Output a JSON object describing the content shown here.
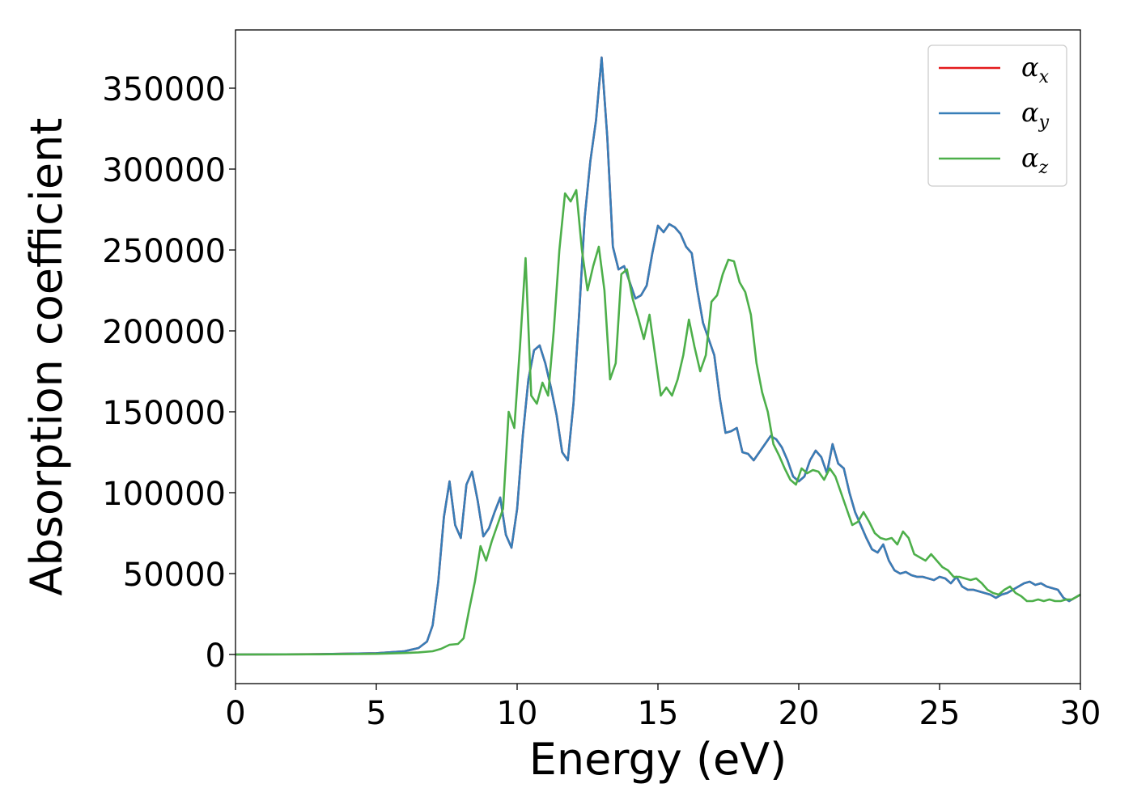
{
  "chart_data": {
    "type": "line",
    "title": "",
    "xlabel": "Energy (eV)",
    "ylabel": "Absorption coefficient",
    "xlim": [
      0,
      30
    ],
    "ylim": [
      -18000,
      386000
    ],
    "xticks": [
      0,
      5,
      10,
      15,
      20,
      25,
      30
    ],
    "yticks": [
      0,
      50000,
      100000,
      150000,
      200000,
      250000,
      300000,
      350000
    ],
    "grid": false,
    "legend_position": "top-right",
    "series": [
      {
        "name": "α_x",
        "label_main": "α",
        "label_sub": "x",
        "color": "#e41a1c",
        "x": [
          0,
          3,
          5,
          6,
          6.5,
          6.8,
          7.0,
          7.2,
          7.4,
          7.6,
          7.8,
          8.0,
          8.2,
          8.4,
          8.6,
          8.8,
          9.0,
          9.2,
          9.4,
          9.6,
          9.8,
          10.0,
          10.2,
          10.4,
          10.6,
          10.8,
          11.0,
          11.2,
          11.4,
          11.6,
          11.8,
          12.0,
          12.2,
          12.4,
          12.6,
          12.8,
          13.0,
          13.2,
          13.4,
          13.6,
          13.8,
          14.0,
          14.2,
          14.4,
          14.6,
          14.8,
          15.0,
          15.2,
          15.4,
          15.6,
          15.8,
          16.0,
          16.2,
          16.4,
          16.6,
          16.8,
          17.0,
          17.2,
          17.4,
          17.6,
          17.8,
          18.0,
          18.2,
          18.4,
          18.6,
          18.8,
          19.0,
          19.2,
          19.4,
          19.6,
          19.8,
          20.0,
          20.2,
          20.4,
          20.6,
          20.8,
          21.0,
          21.2,
          21.4,
          21.6,
          21.8,
          22.0,
          22.2,
          22.4,
          22.6,
          22.8,
          23.0,
          23.2,
          23.4,
          23.6,
          23.8,
          24.0,
          24.2,
          24.4,
          24.6,
          24.8,
          25.0,
          25.2,
          25.4,
          25.6,
          25.8,
          26.0,
          26.2,
          26.4,
          26.6,
          26.8,
          27.0,
          27.2,
          27.4,
          27.6,
          27.8,
          28.0,
          28.2,
          28.4,
          28.6,
          28.8,
          29.0,
          29.2,
          29.4,
          29.6,
          29.8,
          30.0
        ],
        "y": [
          0,
          200,
          800,
          2000,
          4000,
          8000,
          18000,
          45000,
          85000,
          107000,
          80000,
          72000,
          105000,
          113000,
          95000,
          73000,
          78000,
          88000,
          97000,
          74000,
          66000,
          90000,
          135000,
          170000,
          188000,
          191000,
          180000,
          165000,
          148000,
          125000,
          120000,
          155000,
          210000,
          270000,
          305000,
          330000,
          369000,
          320000,
          252000,
          238000,
          240000,
          230000,
          220000,
          222000,
          228000,
          248000,
          265000,
          261000,
          266000,
          264000,
          260000,
          252000,
          248000,
          225000,
          205000,
          195000,
          185000,
          158000,
          137000,
          138000,
          140000,
          125000,
          124000,
          120000,
          125000,
          130000,
          135000,
          133000,
          128000,
          120000,
          110000,
          107000,
          110000,
          120000,
          126000,
          122000,
          112000,
          130000,
          118000,
          115000,
          100000,
          88000,
          80000,
          72000,
          65000,
          63000,
          68000,
          58000,
          52000,
          50000,
          51000,
          49000,
          48000,
          48000,
          47000,
          46000,
          48000,
          47000,
          44000,
          48000,
          42000,
          40000,
          40000,
          39000,
          38000,
          37000,
          35000,
          37000,
          38000,
          40000,
          42000,
          44000,
          45000,
          43000,
          44000,
          42000,
          41000,
          40000,
          35000,
          33000,
          35000,
          37000
        ]
      },
      {
        "name": "α_y",
        "label_main": "α",
        "label_sub": "y",
        "color": "#377eb8",
        "x": [
          0,
          3,
          5,
          6,
          6.5,
          6.8,
          7.0,
          7.2,
          7.4,
          7.6,
          7.8,
          8.0,
          8.2,
          8.4,
          8.6,
          8.8,
          9.0,
          9.2,
          9.4,
          9.6,
          9.8,
          10.0,
          10.2,
          10.4,
          10.6,
          10.8,
          11.0,
          11.2,
          11.4,
          11.6,
          11.8,
          12.0,
          12.2,
          12.4,
          12.6,
          12.8,
          13.0,
          13.2,
          13.4,
          13.6,
          13.8,
          14.0,
          14.2,
          14.4,
          14.6,
          14.8,
          15.0,
          15.2,
          15.4,
          15.6,
          15.8,
          16.0,
          16.2,
          16.4,
          16.6,
          16.8,
          17.0,
          17.2,
          17.4,
          17.6,
          17.8,
          18.0,
          18.2,
          18.4,
          18.6,
          18.8,
          19.0,
          19.2,
          19.4,
          19.6,
          19.8,
          20.0,
          20.2,
          20.4,
          20.6,
          20.8,
          21.0,
          21.2,
          21.4,
          21.6,
          21.8,
          22.0,
          22.2,
          22.4,
          22.6,
          22.8,
          23.0,
          23.2,
          23.4,
          23.6,
          23.8,
          24.0,
          24.2,
          24.4,
          24.6,
          24.8,
          25.0,
          25.2,
          25.4,
          25.6,
          25.8,
          26.0,
          26.2,
          26.4,
          26.6,
          26.8,
          27.0,
          27.2,
          27.4,
          27.6,
          27.8,
          28.0,
          28.2,
          28.4,
          28.6,
          28.8,
          29.0,
          29.2,
          29.4,
          29.6,
          29.8,
          30.0
        ],
        "y": [
          0,
          200,
          800,
          2000,
          4000,
          8000,
          18000,
          45000,
          85000,
          107000,
          80000,
          72000,
          105000,
          113000,
          95000,
          73000,
          78000,
          88000,
          97000,
          74000,
          66000,
          90000,
          135000,
          170000,
          188000,
          191000,
          180000,
          165000,
          148000,
          125000,
          120000,
          155000,
          210000,
          270000,
          305000,
          330000,
          369000,
          320000,
          252000,
          238000,
          240000,
          230000,
          220000,
          222000,
          228000,
          248000,
          265000,
          261000,
          266000,
          264000,
          260000,
          252000,
          248000,
          225000,
          205000,
          195000,
          185000,
          158000,
          137000,
          138000,
          140000,
          125000,
          124000,
          120000,
          125000,
          130000,
          135000,
          133000,
          128000,
          120000,
          110000,
          107000,
          110000,
          120000,
          126000,
          122000,
          112000,
          130000,
          118000,
          115000,
          100000,
          88000,
          80000,
          72000,
          65000,
          63000,
          68000,
          58000,
          52000,
          50000,
          51000,
          49000,
          48000,
          48000,
          47000,
          46000,
          48000,
          47000,
          44000,
          48000,
          42000,
          40000,
          40000,
          39000,
          38000,
          37000,
          35000,
          37000,
          38000,
          40000,
          42000,
          44000,
          45000,
          43000,
          44000,
          42000,
          41000,
          40000,
          35000,
          33000,
          35000,
          37000
        ]
      },
      {
        "name": "α_z",
        "label_main": "α",
        "label_sub": "z",
        "color": "#4daf4a",
        "x": [
          0,
          3,
          5,
          6,
          6.5,
          7.0,
          7.3,
          7.6,
          7.9,
          8.1,
          8.3,
          8.5,
          8.7,
          8.9,
          9.1,
          9.3,
          9.5,
          9.7,
          9.9,
          10.1,
          10.3,
          10.5,
          10.7,
          10.9,
          11.1,
          11.3,
          11.5,
          11.7,
          11.9,
          12.1,
          12.3,
          12.5,
          12.7,
          12.9,
          13.1,
          13.3,
          13.5,
          13.7,
          13.9,
          14.1,
          14.3,
          14.5,
          14.7,
          14.9,
          15.1,
          15.3,
          15.5,
          15.7,
          15.9,
          16.1,
          16.3,
          16.5,
          16.7,
          16.9,
          17.1,
          17.3,
          17.5,
          17.7,
          17.9,
          18.1,
          18.3,
          18.5,
          18.7,
          18.9,
          19.1,
          19.3,
          19.5,
          19.7,
          19.9,
          20.1,
          20.3,
          20.5,
          20.7,
          20.9,
          21.1,
          21.3,
          21.5,
          21.7,
          21.9,
          22.1,
          22.3,
          22.5,
          22.7,
          22.9,
          23.1,
          23.3,
          23.5,
          23.7,
          23.9,
          24.1,
          24.3,
          24.5,
          24.7,
          24.9,
          25.1,
          25.3,
          25.5,
          25.7,
          25.9,
          26.1,
          26.3,
          26.5,
          26.7,
          26.9,
          27.1,
          27.3,
          27.5,
          27.7,
          27.9,
          28.1,
          28.3,
          28.5,
          28.7,
          28.9,
          29.1,
          29.3,
          29.5,
          29.7,
          30.0
        ],
        "y": [
          0,
          100,
          400,
          900,
          1300,
          2000,
          3500,
          6000,
          6500,
          10000,
          28000,
          45000,
          67000,
          58000,
          70000,
          80000,
          90000,
          150000,
          140000,
          190000,
          245000,
          160000,
          155000,
          168000,
          160000,
          200000,
          250000,
          285000,
          280000,
          287000,
          250000,
          225000,
          240000,
          252000,
          225000,
          170000,
          180000,
          235000,
          238000,
          220000,
          208000,
          195000,
          210000,
          185000,
          160000,
          165000,
          160000,
          170000,
          185000,
          207000,
          190000,
          175000,
          185000,
          218000,
          222000,
          235000,
          244000,
          243000,
          230000,
          224000,
          210000,
          180000,
          162000,
          150000,
          130000,
          123000,
          115000,
          108000,
          105000,
          115000,
          112000,
          114000,
          113000,
          108000,
          115000,
          110000,
          100000,
          90000,
          80000,
          82000,
          88000,
          82000,
          75000,
          72000,
          71000,
          72000,
          68000,
          76000,
          72000,
          62000,
          60000,
          58000,
          62000,
          58000,
          54000,
          52000,
          48000,
          48000,
          47000,
          46000,
          47000,
          44000,
          40000,
          38000,
          37000,
          40000,
          42000,
          38000,
          36000,
          33000,
          33000,
          34000,
          33000,
          34000,
          33000,
          33000,
          34000,
          34000,
          37000
        ]
      }
    ]
  }
}
